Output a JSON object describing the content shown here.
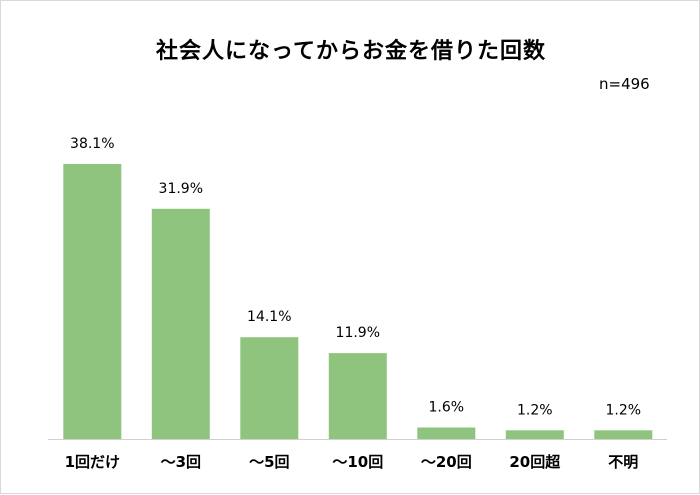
{
  "chart_data": {
    "type": "bar",
    "title": "社会人になってからお金を借りた回数",
    "note": "n=496",
    "categories": [
      "1回だけ",
      "～3回",
      "～5回",
      "～10回",
      "～20回",
      "20回超",
      "不明"
    ],
    "values": [
      38.1,
      31.9,
      14.1,
      11.9,
      1.6,
      1.2,
      1.2
    ],
    "value_labels": [
      "38.1%",
      "31.9%",
      "14.1%",
      "11.9%",
      "1.6%",
      "1.2%",
      "1.2%"
    ],
    "unit": "%",
    "xlabel": "",
    "ylabel": "",
    "ylim": [
      0,
      38.1
    ],
    "grid": false,
    "legend": "none",
    "bar_color": "#8fc47f",
    "axis_color": "#d0d0d0"
  }
}
